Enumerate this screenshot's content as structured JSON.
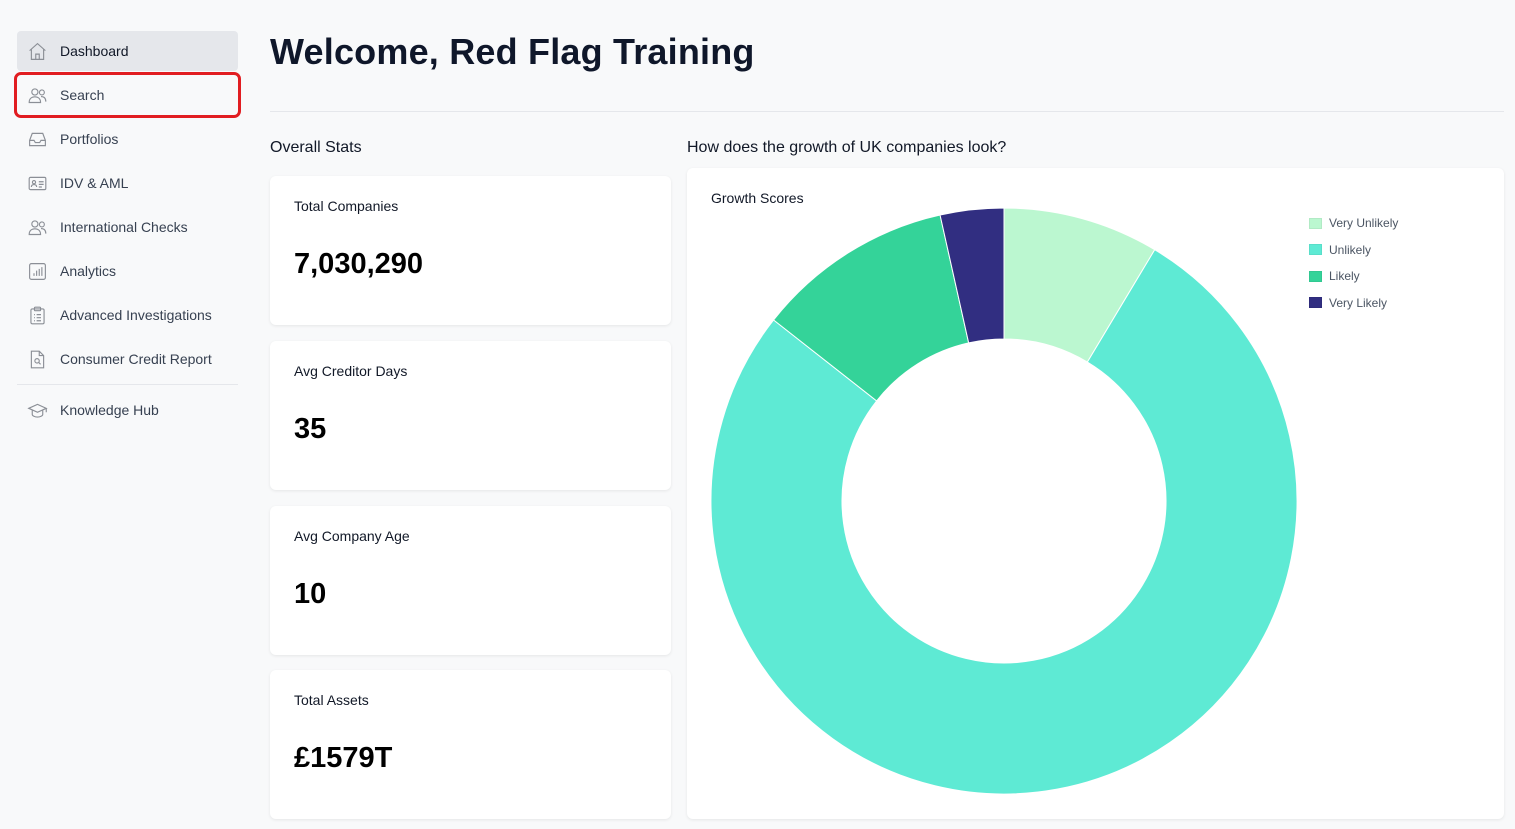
{
  "sidebar": {
    "items": [
      {
        "label": "Dashboard",
        "icon": "home-icon"
      },
      {
        "label": "Search",
        "icon": "users-icon"
      },
      {
        "label": "Portfolios",
        "icon": "inbox-icon"
      },
      {
        "label": "IDV & AML",
        "icon": "id-card-icon"
      },
      {
        "label": "International Checks",
        "icon": "users-icon"
      },
      {
        "label": "Analytics",
        "icon": "bar-chart-icon"
      },
      {
        "label": "Advanced Investigations",
        "icon": "clipboard-list-icon"
      },
      {
        "label": "Consumer Credit Report",
        "icon": "document-search-icon"
      }
    ],
    "secondary": [
      {
        "label": "Knowledge Hub",
        "icon": "graduation-cap-icon"
      }
    ],
    "active_index": 0,
    "highlight_index": 1,
    "highlight_color": "#e11d21"
  },
  "header": {
    "title": "Welcome, Red Flag Training"
  },
  "stats": {
    "section_label": "Overall Stats",
    "cards": [
      {
        "label": "Total Companies",
        "value": "7,030,290"
      },
      {
        "label": "Avg Creditor Days",
        "value": "35"
      },
      {
        "label": "Avg Company Age",
        "value": "10"
      },
      {
        "label": "Total Assets",
        "value": "£1579T"
      }
    ]
  },
  "growth": {
    "section_label": "How does the growth of UK companies look?",
    "card_title": "Growth Scores"
  },
  "chart_data": {
    "type": "pie",
    "donut": true,
    "title": "Growth Scores",
    "categories": [
      "Very Unlikely",
      "Unlikely",
      "Likely",
      "Very Likely"
    ],
    "values": [
      8.6,
      77.0,
      10.9,
      3.5
    ],
    "colors": [
      "#bbf7d0",
      "#5eead4",
      "#34d399",
      "#312e81"
    ],
    "legend_position": "top-right"
  }
}
